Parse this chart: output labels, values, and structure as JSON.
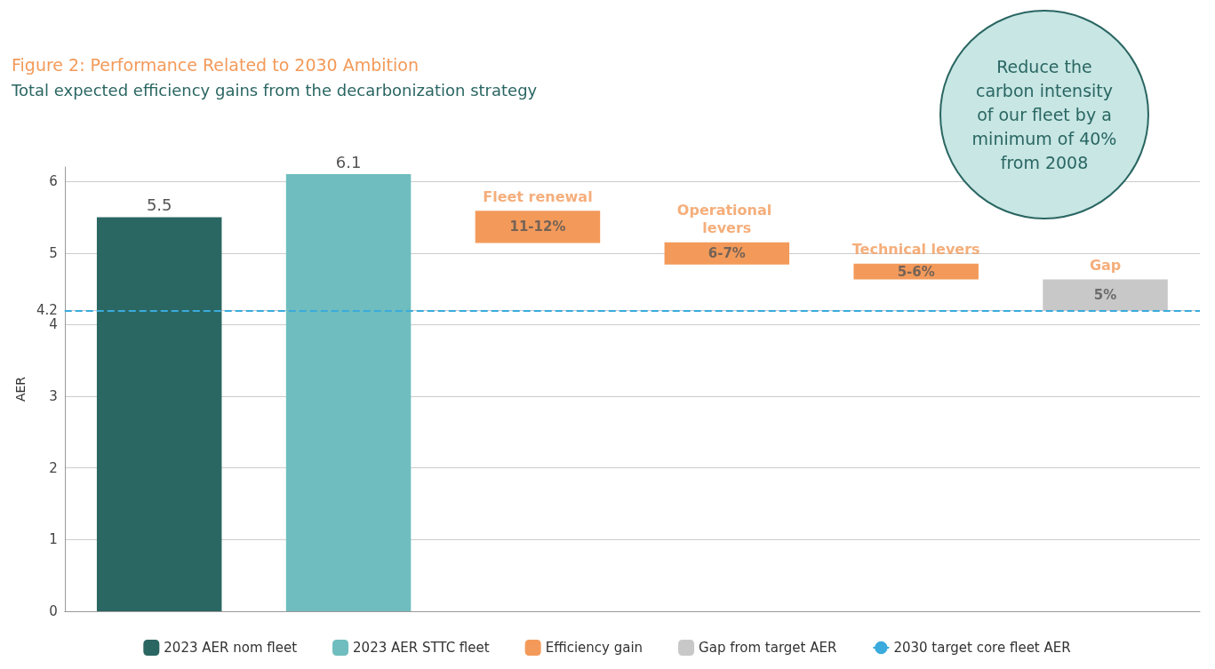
{
  "chart_data": {
    "type": "bar",
    "title": "Figure 2: Performance Related to 2030 Ambition",
    "subtitle": "Total expected efficiency gains from the decarbonization strategy",
    "ylabel": "AER",
    "categories": [
      null,
      null,
      "Fleet renewal",
      "Operational levers",
      "Technical levers",
      "Gap"
    ],
    "series": [
      {
        "name": "2023 AER nom fleet",
        "color": "#2a6662",
        "values": [
          5.5,
          null,
          null,
          null,
          null,
          null
        ],
        "value_labels": [
          "5.5",
          null,
          null,
          null,
          null,
          null
        ]
      },
      {
        "name": "2023 AER STTC fleet",
        "color": "#6fbdbe",
        "values": [
          null,
          6.1,
          null,
          null,
          null,
          null
        ],
        "value_labels": [
          null,
          "6.1",
          null,
          null,
          null,
          null
        ]
      },
      {
        "name": "Efficiency gain",
        "color": "#f39a5a",
        "values": [
          null,
          null,
          0.45,
          0.31,
          0.22,
          null
        ],
        "base": [
          null,
          null,
          5.14,
          4.84,
          4.63,
          null
        ]
      },
      {
        "name": "Gap from target AER",
        "color": "#c8c8c8",
        "values": [
          null,
          null,
          null,
          null,
          null,
          0.43
        ],
        "base": [
          null,
          null,
          null,
          null,
          null,
          4.2
        ]
      }
    ],
    "ylim": [
      0,
      6.2
    ],
    "yticks": [
      0,
      1,
      2,
      3,
      4,
      {
        "value": 4.2,
        "label": "4.2"
      },
      5,
      6
    ],
    "grid": "y",
    "legend": "bottom",
    "ref_lines": [
      {
        "axis": "y",
        "value": 4.2,
        "label": "2030 target core fleet AER",
        "color": "#3aabdc",
        "line_style": "dashed"
      }
    ],
    "annotations": [
      "11-12%",
      "6-7%",
      "5-6%",
      "5%",
      "Reduce the carbon intensity of our fleet by a minimum of 40% from 2008"
    ]
  }
}
